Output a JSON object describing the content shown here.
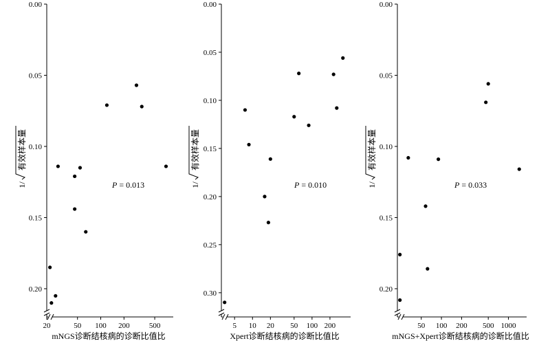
{
  "chart_data": [
    {
      "type": "scatter",
      "xlabel": "mNGS诊断结核病的诊断比值比",
      "ylabel_prefix": "1/",
      "ylabel_main": "有效样本量",
      "annotation_p": "P",
      "annotation_value": " = 0.013",
      "x_scale": "log",
      "x_ticks": [
        20,
        50,
        100,
        200,
        500
      ],
      "x_tick_labels": [
        "20",
        "50",
        "100",
        "200",
        "500"
      ],
      "xlim": [
        20,
        800
      ],
      "y_ticks": [
        0.0,
        0.05,
        0.1,
        0.15,
        0.2
      ],
      "y_tick_labels": [
        "0.00",
        "0.05",
        "0.10",
        "0.15",
        "0.20"
      ],
      "ylim": [
        0.0,
        0.215
      ],
      "y_inverted": true,
      "axis_break": true,
      "points": [
        {
          "x": 22,
          "y": 0.185
        },
        {
          "x": 23,
          "y": 0.21
        },
        {
          "x": 26,
          "y": 0.205
        },
        {
          "x": 28,
          "y": 0.114
        },
        {
          "x": 46,
          "y": 0.121
        },
        {
          "x": 46,
          "y": 0.144
        },
        {
          "x": 54,
          "y": 0.115
        },
        {
          "x": 64,
          "y": 0.16
        },
        {
          "x": 120,
          "y": 0.071
        },
        {
          "x": 290,
          "y": 0.057
        },
        {
          "x": 340,
          "y": 0.072
        },
        {
          "x": 700,
          "y": 0.114
        }
      ]
    },
    {
      "type": "scatter",
      "xlabel": "Xpert诊断结核病的诊断比值比",
      "ylabel_prefix": "1/",
      "ylabel_main": "有效样本量",
      "annotation_p": "P",
      "annotation_value": " = 0.010",
      "x_scale": "log",
      "x_ticks": [
        5,
        10,
        20,
        50,
        100,
        200
      ],
      "x_tick_labels": [
        "5",
        "10",
        "20",
        "50",
        "100",
        "200"
      ],
      "xlim": [
        3,
        400
      ],
      "y_ticks": [
        0.0,
        0.05,
        0.1,
        0.15,
        0.2,
        0.25,
        0.3
      ],
      "y_tick_labels": [
        "0.00",
        "0.05",
        "0.10",
        "0.15",
        "0.20",
        "0.25",
        "0.30"
      ],
      "ylim": [
        0.0,
        0.318
      ],
      "y_inverted": true,
      "axis_break": true,
      "points": [
        {
          "x": 3.4,
          "y": 0.31
        },
        {
          "x": 7.5,
          "y": 0.11
        },
        {
          "x": 8.7,
          "y": 0.146
        },
        {
          "x": 16,
          "y": 0.2
        },
        {
          "x": 18.5,
          "y": 0.227
        },
        {
          "x": 20,
          "y": 0.161
        },
        {
          "x": 50,
          "y": 0.117
        },
        {
          "x": 60,
          "y": 0.072
        },
        {
          "x": 88,
          "y": 0.126
        },
        {
          "x": 230,
          "y": 0.073
        },
        {
          "x": 260,
          "y": 0.108
        },
        {
          "x": 330,
          "y": 0.056
        }
      ]
    },
    {
      "type": "scatter",
      "xlabel": "mNGS+Xpert诊断结核病的诊断比值比",
      "ylabel_prefix": "1/",
      "ylabel_main": "有效样本量",
      "annotation_p": "P",
      "annotation_value": " = 0.033",
      "x_scale": "log",
      "x_ticks": [
        50,
        100,
        200,
        500,
        1000
      ],
      "x_tick_labels": [
        "50",
        "100",
        "200",
        "500",
        "1000"
      ],
      "xlim": [
        22,
        1700
      ],
      "y_ticks": [
        0.0,
        0.05,
        0.1,
        0.15,
        0.2
      ],
      "y_tick_labels": [
        "0.00",
        "0.05",
        "0.10",
        "0.15",
        "0.20"
      ],
      "ylim": [
        0.0,
        0.215
      ],
      "y_inverted": true,
      "axis_break": true,
      "points": [
        {
          "x": 24,
          "y": 0.176
        },
        {
          "x": 24,
          "y": 0.208
        },
        {
          "x": 32,
          "y": 0.108
        },
        {
          "x": 58,
          "y": 0.142
        },
        {
          "x": 62,
          "y": 0.186
        },
        {
          "x": 90,
          "y": 0.109
        },
        {
          "x": 460,
          "y": 0.069
        },
        {
          "x": 500,
          "y": 0.056
        },
        {
          "x": 1450,
          "y": 0.116
        }
      ]
    }
  ]
}
